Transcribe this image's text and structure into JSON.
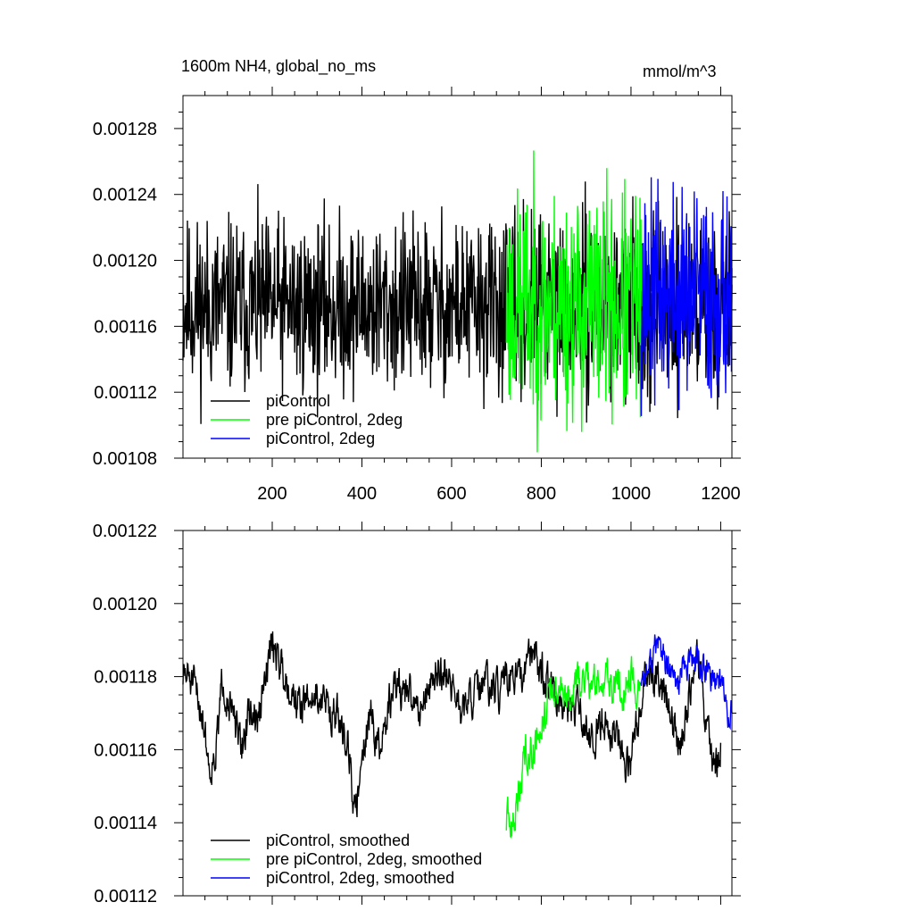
{
  "chart_data": [
    {
      "type": "line",
      "title": "1600m NH4, global_no_ms",
      "units": "mmol/m^3",
      "xlabel": "",
      "ylabel": "",
      "xlim": [
        1,
        1225
      ],
      "ylim": [
        0.00108,
        0.0013
      ],
      "xticks": [
        200,
        400,
        600,
        800,
        1000,
        1200
      ],
      "yticks": [
        "0.00108",
        "0.00112",
        "0.00116",
        "0.00120",
        "0.00124",
        "0.00128"
      ],
      "legend_position": "bottom-left",
      "series": [
        {
          "name": "piControl",
          "color": "#000000",
          "x_range": [
            1,
            1225
          ],
          "mean": 0.001172,
          "noise_amp": 2.6e-05,
          "seed": 11
        },
        {
          "name": "pre piControl, 2deg",
          "color": "#00ff00",
          "x_range": [
            722,
            1025
          ],
          "mean": 0.001172,
          "noise_amp": 3.4e-05,
          "seed": 23
        },
        {
          "name": "piControl, 2deg",
          "color": "#0000ff",
          "x_range": [
            1022,
            1225
          ],
          "mean": 0.001178,
          "noise_amp": 3.2e-05,
          "seed": 37
        }
      ]
    },
    {
      "type": "line",
      "title": "",
      "xlabel": "",
      "ylabel": "",
      "xlim": [
        1,
        1225
      ],
      "ylim": [
        0.00112,
        0.00122
      ],
      "xticks": [
        200,
        400,
        600,
        800,
        1000,
        1200
      ],
      "yticks": [
        "0.00112",
        "0.00114",
        "0.00116",
        "0.00118",
        "0.00120",
        "0.00122"
      ],
      "legend_position": "bottom-left",
      "series": [
        {
          "name": "piControl, smoothed",
          "color": "#000000",
          "x": [
            1,
            15,
            30,
            45,
            60,
            75,
            90,
            110,
            130,
            150,
            170,
            200,
            230,
            260,
            300,
            340,
            370,
            385,
            400,
            420,
            440,
            470,
            500,
            530,
            560,
            590,
            620,
            650,
            680,
            700,
            720,
            740,
            760,
            780,
            800,
            820,
            850,
            880,
            910,
            940,
            970,
            1000,
            1030,
            1060,
            1090,
            1110,
            1130,
            1150,
            1170,
            1190,
            1200
          ],
          "y": [
            0.00118,
            0.00118,
            0.001175,
            0.00117,
            0.001155,
            0.00116,
            0.00118,
            0.00117,
            0.00116,
            0.00117,
            0.001168,
            0.00119,
            0.00118,
            0.001172,
            0.001175,
            0.00117,
            0.001162,
            0.00114,
            0.00116,
            0.00117,
            0.001158,
            0.001178,
            0.001175,
            0.001172,
            0.00118,
            0.001182,
            0.00117,
            0.001175,
            0.001178,
            0.001175,
            0.001178,
            0.00118,
            0.001178,
            0.001188,
            0.001182,
            0.001178,
            0.001168,
            0.001172,
            0.001162,
            0.00117,
            0.001162,
            0.001155,
            0.00118,
            0.00118,
            0.00117,
            0.00116,
            0.001175,
            0.001185,
            0.001165,
            0.001155,
            0.00116
          ],
          "noise_amp": 5.5e-06,
          "seed": 51
        },
        {
          "name": "pre piControl, 2deg, smoothed",
          "color": "#00ff00",
          "x": [
            722,
            735,
            750,
            765,
            780,
            800,
            820,
            840,
            860,
            880,
            900,
            920,
            940,
            960,
            980,
            1000,
            1020
          ],
          "y": [
            0.00114,
            0.001138,
            0.001148,
            0.00116,
            0.00116,
            0.001168,
            0.001175,
            0.001178,
            0.001172,
            0.001178,
            0.00118,
            0.001178,
            0.00118,
            0.001178,
            0.001176,
            0.001182,
            0.001175
          ],
          "noise_amp": 5.5e-06,
          "seed": 63
        },
        {
          "name": "piControl, 2deg, smoothed",
          "color": "#0000ff",
          "x": [
            1022,
            1040,
            1060,
            1080,
            1100,
            1120,
            1140,
            1160,
            1180,
            1200,
            1215,
            1225
          ],
          "y": [
            0.00118,
            0.001182,
            0.00119,
            0.001182,
            0.001178,
            0.001182,
            0.001185,
            0.001182,
            0.00118,
            0.00118,
            0.00117,
            0.001172
          ],
          "noise_amp": 4.5e-06,
          "seed": 77
        }
      ]
    }
  ]
}
